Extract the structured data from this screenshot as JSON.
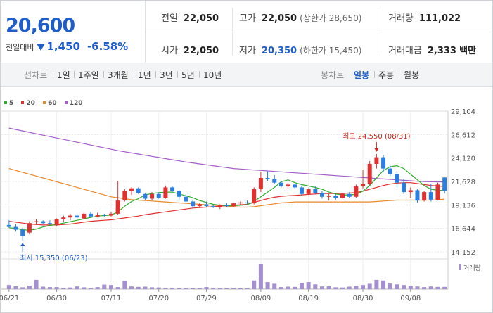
{
  "quote": {
    "price": "20,600",
    "change_label": "전일대비",
    "change": "1,450",
    "change_pct": "-6.58%"
  },
  "stats": {
    "prev_close": {
      "label": "전일",
      "value": "22,050"
    },
    "high": {
      "label": "고가",
      "value": "22,050",
      "sub": "(상한가 28,650)"
    },
    "volume": {
      "label": "거래량",
      "value": "111,022"
    },
    "open": {
      "label": "시가",
      "value": "22,050"
    },
    "low": {
      "label": "저가",
      "value": "20,350",
      "sub": "(하한가 15,450)"
    },
    "amount": {
      "label": "거래대금",
      "value": "2,333",
      "unit": "백만"
    }
  },
  "toolbar": {
    "line_chart_label": "선차트",
    "periods": [
      "1일",
      "1주일",
      "3개월",
      "1년",
      "3년",
      "5년",
      "10년"
    ],
    "candle_label": "봉차트",
    "candle_periods": [
      "일봉",
      "주봉",
      "월봉"
    ],
    "candle_active": "일봉"
  },
  "colors": {
    "up": "#e0302f",
    "down": "#2b7fe0",
    "ma5": "#2cae2c",
    "ma20": "#e0302f",
    "ma60": "#e8892a",
    "ma120": "#a45ec8",
    "volume": "#a48fd0",
    "accent": "#1f5dcb"
  },
  "chart_data": {
    "type": "candlestick",
    "legend": [
      "5",
      "20",
      "60",
      "120"
    ],
    "volume_legend": "거래량",
    "y_ticks": [
      "29,104",
      "26,612",
      "24,120",
      "21,628",
      "19,136",
      "16,644",
      "14,152"
    ],
    "ylim": [
      14152,
      29104
    ],
    "x_ticks": [
      "06/21",
      "06/30",
      "07/11",
      "07/20",
      "07/29",
      "08/09",
      "08/19",
      "08/30",
      "09/08"
    ],
    "high_annotation": "최고 24,550 (08/31)",
    "low_annotation": "최저 15,350 (06/23)",
    "candles": [
      [
        17000,
        17500,
        16700,
        16800
      ],
      [
        16800,
        17100,
        16300,
        16500
      ],
      [
        16500,
        16700,
        15350,
        15800
      ],
      [
        16200,
        17400,
        16000,
        17200
      ],
      [
        17300,
        17600,
        17000,
        17400
      ],
      [
        17400,
        17500,
        17100,
        17200
      ],
      [
        17200,
        17500,
        17000,
        17100
      ],
      [
        17000,
        17700,
        16900,
        17600
      ],
      [
        17600,
        18000,
        17300,
        17800
      ],
      [
        17800,
        18200,
        17500,
        18000
      ],
      [
        18000,
        18200,
        17700,
        17800
      ],
      [
        17700,
        18300,
        17600,
        18200
      ],
      [
        18200,
        18400,
        17800,
        17900
      ],
      [
        17900,
        18300,
        17800,
        18100
      ],
      [
        18100,
        18200,
        17900,
        18000
      ],
      [
        18000,
        18400,
        17900,
        18200
      ],
      [
        18200,
        21700,
        18100,
        19600
      ],
      [
        19600,
        20800,
        19500,
        20600
      ],
      [
        20600,
        21000,
        20200,
        20900
      ],
      [
        20900,
        21000,
        20300,
        20400
      ],
      [
        20300,
        20400,
        19600,
        19800
      ],
      [
        19800,
        20500,
        19600,
        20300
      ],
      [
        20300,
        20500,
        19800,
        19900
      ],
      [
        19900,
        21200,
        19800,
        21000
      ],
      [
        21000,
        21100,
        20500,
        20600
      ],
      [
        20600,
        20700,
        19700,
        20000
      ],
      [
        20000,
        20300,
        19400,
        19500
      ],
      [
        19500,
        19700,
        18800,
        19000
      ],
      [
        19000,
        19300,
        18800,
        19200
      ],
      [
        19200,
        19500,
        18900,
        19000
      ],
      [
        19000,
        19200,
        18800,
        18900
      ],
      [
        18900,
        19200,
        18700,
        19100
      ],
      [
        19100,
        19300,
        18900,
        19000
      ],
      [
        19000,
        19400,
        18900,
        19300
      ],
      [
        19300,
        19500,
        19100,
        19400
      ],
      [
        19400,
        19600,
        19200,
        19300
      ],
      [
        19300,
        21000,
        19200,
        20800
      ],
      [
        20800,
        22600,
        20500,
        22000
      ],
      [
        22000,
        22700,
        21700,
        21900
      ],
      [
        21900,
        22300,
        21400,
        21500
      ],
      [
        21500,
        21700,
        21000,
        21100
      ],
      [
        21100,
        21500,
        20800,
        21300
      ],
      [
        21300,
        21400,
        20900,
        21000
      ],
      [
        21000,
        21200,
        20100,
        20300
      ],
      [
        20300,
        20900,
        20200,
        20800
      ],
      [
        20800,
        21100,
        20300,
        20400
      ],
      [
        20400,
        20600,
        19800,
        20000
      ],
      [
        20000,
        20300,
        19600,
        20100
      ],
      [
        20100,
        20300,
        19700,
        19900
      ],
      [
        19900,
        20400,
        19800,
        20300
      ],
      [
        20300,
        20500,
        19900,
        20000
      ],
      [
        20000,
        21300,
        19900,
        21100
      ],
      [
        21100,
        22900,
        20900,
        21400
      ],
      [
        21400,
        23800,
        21200,
        23500
      ],
      [
        23500,
        24550,
        23000,
        24200
      ],
      [
        24200,
        24400,
        22600,
        23000
      ],
      [
        23000,
        23300,
        22200,
        22400
      ],
      [
        22400,
        22600,
        21000,
        21500
      ],
      [
        21500,
        21900,
        20300,
        20500
      ],
      [
        20500,
        21000,
        19900,
        20700
      ],
      [
        20700,
        20800,
        19400,
        19600
      ],
      [
        19600,
        20600,
        19500,
        20500
      ],
      [
        20500,
        21400,
        19500,
        19700
      ],
      [
        19700,
        21500,
        19600,
        21300
      ],
      [
        22050,
        22050,
        20350,
        20600
      ]
    ],
    "volume": [
      20,
      14,
      9,
      17,
      45,
      12,
      10,
      10,
      7,
      8,
      13,
      9,
      5,
      10,
      22,
      20,
      10,
      40,
      13,
      11,
      12,
      9,
      8,
      7,
      6,
      5,
      5,
      5,
      5,
      10,
      6,
      5,
      5,
      5,
      5,
      4,
      42,
      120,
      34,
      26,
      10,
      12,
      11,
      31,
      34,
      23,
      13,
      14,
      9,
      8,
      12,
      16,
      20,
      26,
      45,
      42,
      27,
      23,
      20,
      15,
      13,
      10,
      13,
      11,
      11
    ],
    "ma": {
      "5": [
        16700,
        16650,
        16500,
        16450,
        16560,
        16800,
        16950,
        17050,
        17200,
        17350,
        17500,
        17650,
        17800,
        17950,
        18000,
        18050,
        18400,
        19000,
        19500,
        19800,
        20200,
        20350,
        20450,
        20500,
        20500,
        20300,
        20100,
        19900,
        19600,
        19400,
        19200,
        19100,
        19050,
        19050,
        19100,
        19150,
        19500,
        20000,
        20500,
        21000,
        21600,
        21800,
        21500,
        21300,
        21150,
        21000,
        20800,
        20500,
        20300,
        20200,
        20200,
        20250,
        20600,
        21200,
        22000,
        22800,
        23200,
        23300,
        23000,
        22400,
        21800,
        21200,
        20800,
        20700,
        20650
      ],
      "20": [
        17400,
        17300,
        17200,
        17100,
        17050,
        17000,
        17000,
        17000,
        17050,
        17100,
        17200,
        17300,
        17400,
        17450,
        17500,
        17550,
        17650,
        17750,
        17850,
        17950,
        18100,
        18200,
        18300,
        18400,
        18500,
        18600,
        18700,
        18800,
        18850,
        18900,
        18950,
        19000,
        19050,
        19100,
        19150,
        19200,
        19400,
        19600,
        19800,
        19950,
        20050,
        20100,
        20150,
        20200,
        20250,
        20300,
        20350,
        20350,
        20350,
        20350,
        20400,
        20450,
        20600,
        20800,
        21000,
        21200,
        21350,
        21450,
        21500,
        21500,
        21400,
        21300,
        21200,
        21150,
        21100
      ],
      "60": [
        23000,
        22800,
        22600,
        22400,
        22200,
        22000,
        21800,
        21600,
        21400,
        21200,
        21000,
        20800,
        20600,
        20400,
        20200,
        20000,
        19900,
        19800,
        19700,
        19650,
        19600,
        19550,
        19500,
        19450,
        19400,
        19350,
        19300,
        19250,
        19200,
        19150,
        19100,
        19050,
        19000,
        18950,
        18900,
        18900,
        18950,
        19050,
        19150,
        19250,
        19350,
        19400,
        19450,
        19450,
        19450,
        19450,
        19450,
        19450,
        19450,
        19450,
        19450,
        19450,
        19450,
        19450,
        19500,
        19550,
        19600,
        19650,
        19650,
        19650,
        19650,
        19650,
        19650,
        19700,
        19750
      ],
      "120": [
        27300,
        27150,
        27000,
        26850,
        26700,
        26550,
        26400,
        26250,
        26100,
        25950,
        25800,
        25650,
        25500,
        25350,
        25200,
        25050,
        24900,
        24780,
        24660,
        24540,
        24420,
        24300,
        24180,
        24060,
        23940,
        23820,
        23700,
        23600,
        23500,
        23400,
        23300,
        23200,
        23100,
        23000,
        22950,
        22900,
        22850,
        22800,
        22750,
        22700,
        22650,
        22600,
        22550,
        22500,
        22450,
        22400,
        22350,
        22300,
        22250,
        22200,
        22150,
        22100,
        22050,
        22000,
        21950,
        21900,
        21850,
        21800,
        21750,
        21700,
        21650,
        21620,
        21600,
        21590,
        21580
      ]
    }
  }
}
